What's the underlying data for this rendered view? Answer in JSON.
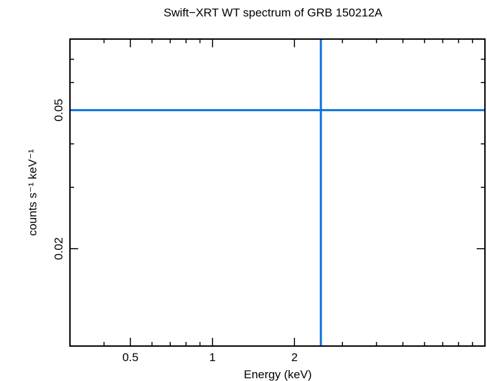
{
  "chart_data": {
    "type": "scatter",
    "title": "Swift−XRT WT spectrum of GRB 150212A",
    "xlabel": "Energy (keV)",
    "ylabel": "counts s⁻¹ keV⁻¹",
    "x_scale": "log",
    "y_scale": "log",
    "xlim": [
      0.3,
      10
    ],
    "ylim": [
      0.0105,
      0.08
    ],
    "x_ticklabels": [
      {
        "value": 0.5,
        "label": "0.5"
      },
      {
        "value": 1,
        "label": "1"
      },
      {
        "value": 2,
        "label": "2"
      }
    ],
    "y_ticklabels": [
      {
        "value": 0.02,
        "label": "0.02"
      },
      {
        "value": 0.05,
        "label": "0.05"
      }
    ],
    "grid": false,
    "series": [
      {
        "color": "#0a6fe0",
        "points": [
          {
            "x": 2.5,
            "y": 0.05,
            "x_err": [
              0.3,
              10
            ],
            "y_err": [
              0.0105,
              0.08
            ]
          }
        ]
      }
    ]
  }
}
